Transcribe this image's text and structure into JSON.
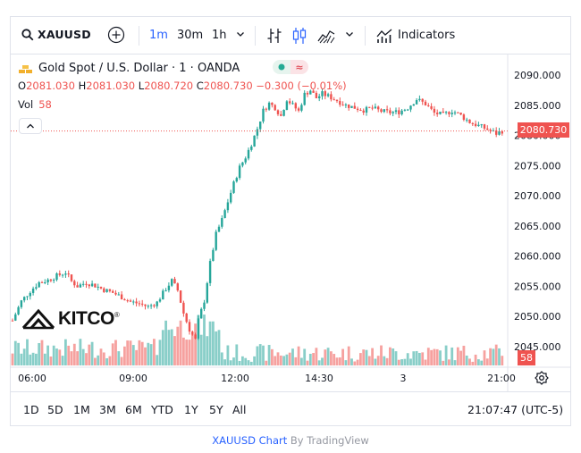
{
  "toolbar": {
    "symbol": "XAUUSD",
    "intervals": [
      "1m",
      "30m",
      "1h"
    ],
    "active_interval": "1m",
    "indicators_label": "Indicators"
  },
  "legend": {
    "title": "Gold Spot / U.S. Dollar · 1 · OANDA",
    "o_label": "O",
    "o_value": "2081.030",
    "h_label": "H",
    "h_value": "2081.030",
    "l_label": "L",
    "l_value": "2080.720",
    "c_label": "C",
    "c_value": "2080.730",
    "change": "−0.300 (−0.01%)",
    "vol_label": "Vol",
    "vol_value": "58",
    "pill_right": "≈"
  },
  "watermark": {
    "text": "KITCO",
    "mark": "®"
  },
  "price_tag": "2080.730",
  "volume_tag": "58",
  "ranges": [
    "1D",
    "5D",
    "1M",
    "3M",
    "6M",
    "YTD",
    "1Y",
    "5Y",
    "All"
  ],
  "clock": "21:07:47 (UTC-5)",
  "footer": {
    "link": "XAUUSD Chart",
    "by": " By TradingView"
  },
  "colors": {
    "up": "#26a69a",
    "down": "#ef5350",
    "accent": "#2962ff"
  },
  "chart_data": {
    "type": "candlestick",
    "title": "Gold Spot / U.S. Dollar · 1 · OANDA",
    "y_ticks": [
      "2090.000",
      "2085.000",
      "2080.000",
      "2075.000",
      "2070.000",
      "2065.000",
      "2060.000",
      "2055.000",
      "2050.000",
      "2045.000"
    ],
    "y_range": [
      2044.0,
      2092.0
    ],
    "x_ticks": [
      "06:00",
      "09:00",
      "12:00",
      "14:30",
      "3",
      "21:00"
    ],
    "last_price": 2080.73,
    "close_path": [
      [
        0,
        2049.3
      ],
      [
        3,
        2052.5
      ],
      [
        6,
        2054.2
      ],
      [
        9,
        2055.6
      ],
      [
        12,
        2056.0
      ],
      [
        15,
        2056.7
      ],
      [
        18,
        2057.3
      ],
      [
        20,
        2055.8
      ],
      [
        22,
        2055.0
      ],
      [
        25,
        2055.6
      ],
      [
        28,
        2055.1
      ],
      [
        31,
        2054.4
      ],
      [
        34,
        2053.9
      ],
      [
        37,
        2053.2
      ],
      [
        40,
        2052.4
      ],
      [
        43,
        2052.1
      ],
      [
        46,
        2051.6
      ],
      [
        49,
        2052.3
      ],
      [
        52,
        2054.6
      ],
      [
        54,
        2055.9
      ],
      [
        56,
        2054.3
      ],
      [
        58,
        2050.5
      ],
      [
        60,
        2047.8
      ],
      [
        62,
        2046.1
      ],
      [
        63,
        2049.3
      ],
      [
        65,
        2052.6
      ],
      [
        67,
        2058.8
      ],
      [
        69,
        2063.6
      ],
      [
        71,
        2066.0
      ],
      [
        73,
        2069.0
      ],
      [
        75,
        2072.0
      ],
      [
        77,
        2074.7
      ],
      [
        79,
        2076.4
      ],
      [
        81,
        2078.6
      ],
      [
        83,
        2081.1
      ],
      [
        85,
        2084.1
      ],
      [
        87,
        2085.3
      ],
      [
        89,
        2084.6
      ],
      [
        91,
        2083.2
      ],
      [
        93,
        2086.0
      ],
      [
        95,
        2085.0
      ],
      [
        97,
        2084.0
      ],
      [
        99,
        2086.8
      ],
      [
        101,
        2087.5
      ],
      [
        103,
        2086.2
      ],
      [
        105,
        2086.9
      ],
      [
        107,
        2086.5
      ],
      [
        110,
        2085.8
      ],
      [
        113,
        2085.0
      ],
      [
        116,
        2084.6
      ],
      [
        119,
        2084.2
      ],
      [
        122,
        2084.5
      ],
      [
        125,
        2084.0
      ],
      [
        128,
        2083.8
      ],
      [
        131,
        2083.9
      ],
      [
        134,
        2084.6
      ],
      [
        137,
        2086.0
      ],
      [
        140,
        2085.2
      ],
      [
        143,
        2083.7
      ],
      [
        146,
        2083.4
      ],
      [
        149,
        2084.1
      ],
      [
        152,
        2083.3
      ],
      [
        155,
        2082.2
      ],
      [
        158,
        2081.6
      ],
      [
        161,
        2081.0
      ],
      [
        164,
        2080.3
      ],
      [
        166,
        2080.73
      ]
    ],
    "volume": "per-bar volume histogram (bottom pane); last bar 58"
  }
}
